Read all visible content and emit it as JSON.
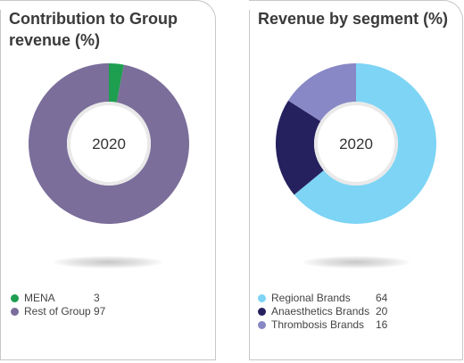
{
  "chart_data": [
    {
      "type": "pie",
      "title": "Contribution to Group revenue (%)",
      "center_label": "2020",
      "categories": [
        "MENA",
        "Rest of Group"
      ],
      "values": [
        3,
        97
      ],
      "colors": [
        "#1e9e4f",
        "#7b6e9a"
      ],
      "legend": "bottom-left"
    },
    {
      "type": "pie",
      "title": "Revenue by segment (%)",
      "center_label": "2020",
      "categories": [
        "Regional Brands",
        "Anaesthetics Brands",
        "Thrombosis Brands"
      ],
      "values": [
        64,
        20,
        16
      ],
      "colors": [
        "#7dd4f5",
        "#25215e",
        "#8888c6"
      ],
      "legend": "bottom-left"
    }
  ]
}
